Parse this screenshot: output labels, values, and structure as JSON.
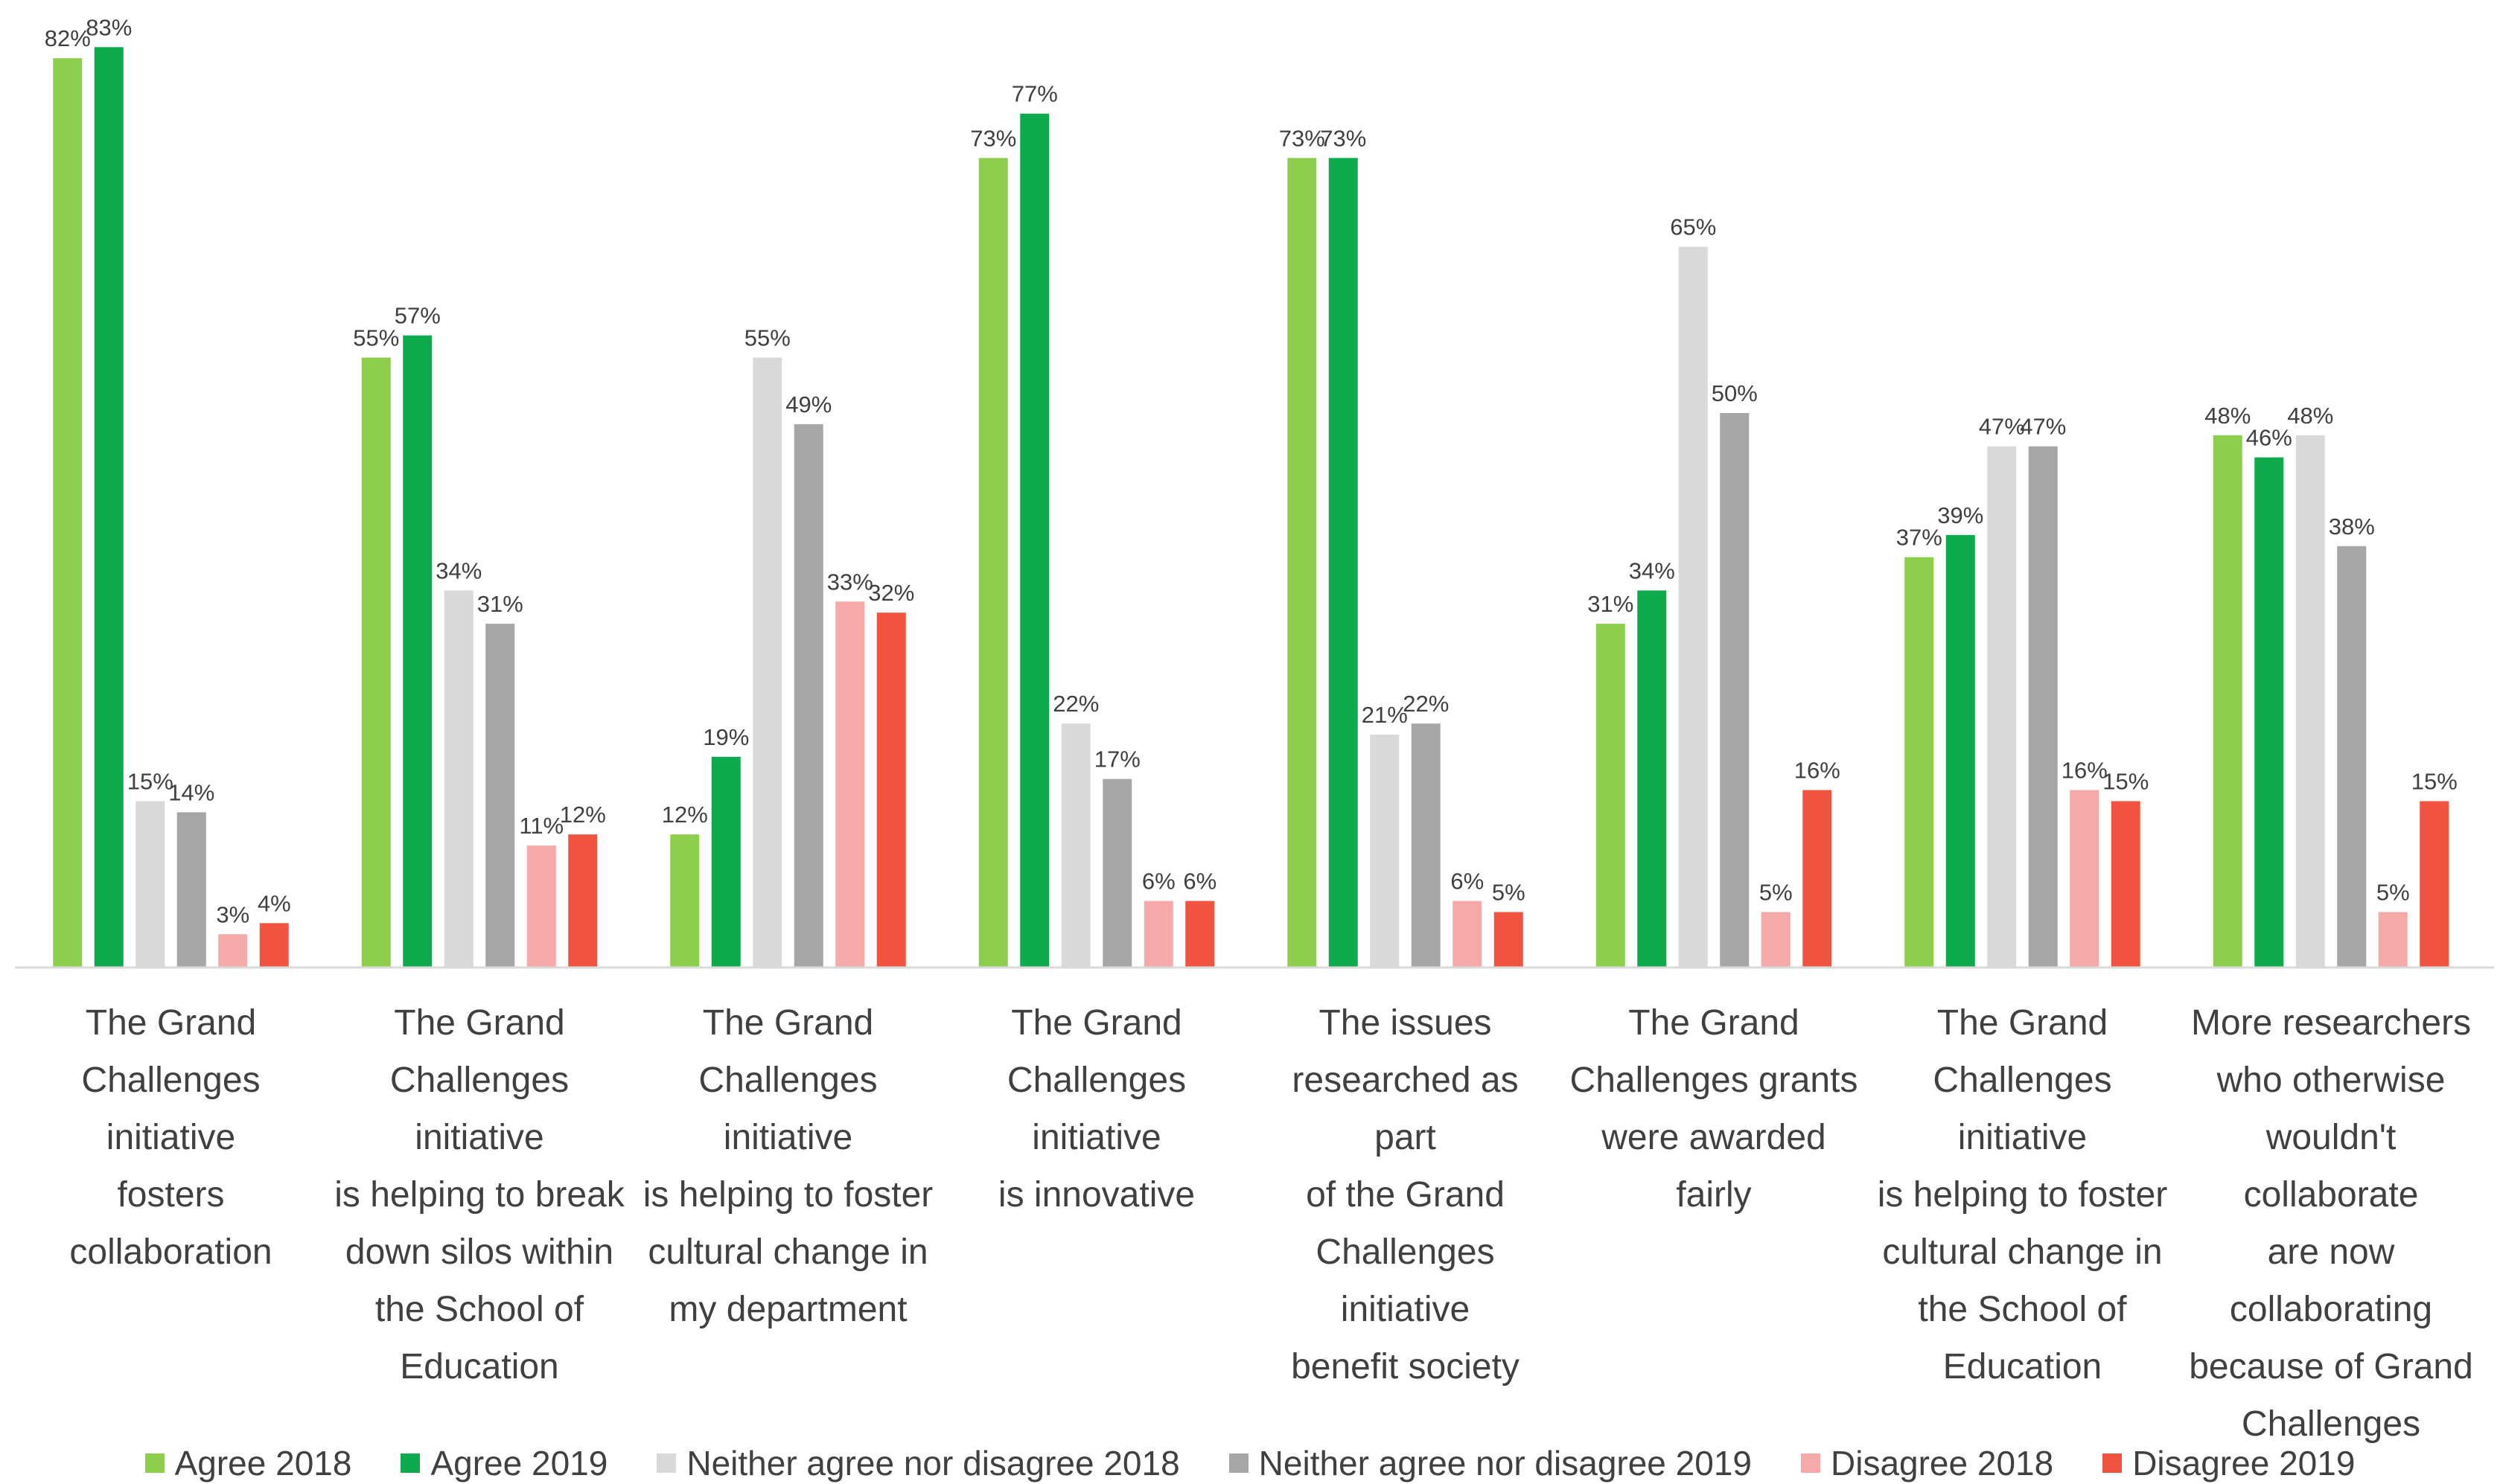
{
  "chart_data": {
    "type": "bar",
    "title": "",
    "xlabel": "",
    "ylabel": "",
    "ylim": [
      0,
      85
    ],
    "grid": false,
    "legend_position": "bottom",
    "value_format": "percent",
    "categories": [
      "The Grand Challenges initiative fosters collaboration",
      "The Grand Challenges initiative is helping to break down silos within the School of Education",
      "The Grand Challenges initiative is helping to foster cultural change in my department",
      "The Grand Challenges initiative is innovative",
      "The issues researched as part of the Grand Challenges initiative benefit society",
      "The Grand Challenges grants were awarded fairly",
      "The Grand Challenges initiative is helping to foster cultural change in the School of Education",
      "More researchers who otherwise wouldn't collaborate are now collaborating because of Grand Challenges"
    ],
    "category_label_lines": [
      [
        "The Grand",
        "Challenges initiative",
        "fosters collaboration"
      ],
      [
        "The Grand",
        "Challenges initiative",
        "is helping to break",
        "down silos within",
        "the School of",
        "Education"
      ],
      [
        "The Grand",
        "Challenges initiative",
        "is helping to foster",
        "cultural change in",
        "my department"
      ],
      [
        "The Grand",
        "Challenges initiative",
        "is innovative"
      ],
      [
        "The issues",
        "researched as part",
        "of the Grand",
        "Challenges initiative",
        "benefit society"
      ],
      [
        "The Grand",
        "Challenges grants",
        "were awarded fairly"
      ],
      [
        "The Grand",
        "Challenges initiative",
        "is helping to foster",
        "cultural change in",
        "the School of",
        "Education"
      ],
      [
        "More researchers",
        "who otherwise",
        "wouldn't collaborate",
        "are now",
        "collaborating",
        "because of Grand",
        "Challenges"
      ]
    ],
    "series": [
      {
        "name": "Agree 2018",
        "color": "#8DCF4D",
        "values": [
          82,
          55,
          12,
          73,
          73,
          31,
          37,
          48
        ]
      },
      {
        "name": "Agree 2019",
        "color": "#0DAA4E",
        "values": [
          83,
          57,
          19,
          77,
          73,
          34,
          39,
          46
        ]
      },
      {
        "name": "Neither agree nor disagree 2018",
        "color": "#D9D9D9",
        "values": [
          15,
          34,
          55,
          22,
          21,
          65,
          47,
          48
        ]
      },
      {
        "name": "Neither agree nor disagree 2019",
        "color": "#A6A6A6",
        "values": [
          14,
          31,
          49,
          17,
          22,
          50,
          47,
          38
        ]
      },
      {
        "name": "Disagree 2018",
        "color": "#F6A9A9",
        "values": [
          3,
          11,
          33,
          6,
          6,
          5,
          16,
          5
        ]
      },
      {
        "name": "Disagree 2019",
        "color": "#F0533F",
        "values": [
          4,
          12,
          32,
          6,
          5,
          16,
          15,
          15
        ]
      }
    ]
  }
}
